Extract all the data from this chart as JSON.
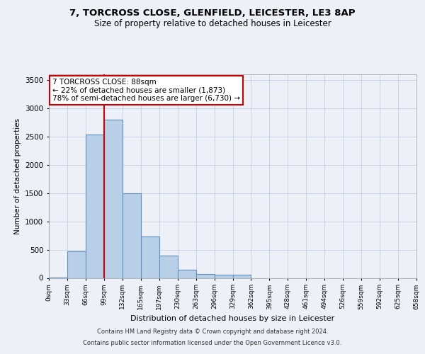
{
  "title_line1": "7, TORCROSS CLOSE, GLENFIELD, LEICESTER, LE3 8AP",
  "title_line2": "Size of property relative to detached houses in Leicester",
  "xlabel": "Distribution of detached houses by size in Leicester",
  "ylabel": "Number of detached properties",
  "bin_labels": [
    "0sqm",
    "33sqm",
    "66sqm",
    "99sqm",
    "132sqm",
    "165sqm",
    "197sqm",
    "230sqm",
    "263sqm",
    "296sqm",
    "329sqm",
    "362sqm",
    "395sqm",
    "428sqm",
    "461sqm",
    "494sqm",
    "526sqm",
    "559sqm",
    "592sqm",
    "625sqm",
    "658sqm"
  ],
  "bar_heights": [
    5,
    470,
    2530,
    2800,
    1500,
    730,
    390,
    140,
    75,
    55,
    55,
    0,
    0,
    0,
    0,
    0,
    0,
    0,
    0,
    0
  ],
  "bar_color": "#b8cfe8",
  "bar_edge_color": "#6090c0",
  "grid_color": "#c8d4e4",
  "vline_color": "#cc0000",
  "annotation_text": "7 TORCROSS CLOSE: 88sqm\n← 22% of detached houses are smaller (1,873)\n78% of semi-detached houses are larger (6,730) →",
  "annotation_box_color": "white",
  "annotation_box_edge": "#cc0000",
  "ylim": [
    0,
    3600
  ],
  "yticks": [
    0,
    500,
    1000,
    1500,
    2000,
    2500,
    3000,
    3500
  ],
  "footer_line1": "Contains HM Land Registry data © Crown copyright and database right 2024.",
  "footer_line2": "Contains public sector information licensed under the Open Government Licence v3.0.",
  "bg_color": "#edf1f7",
  "n_bins": 20,
  "vline_bin_index": 3
}
